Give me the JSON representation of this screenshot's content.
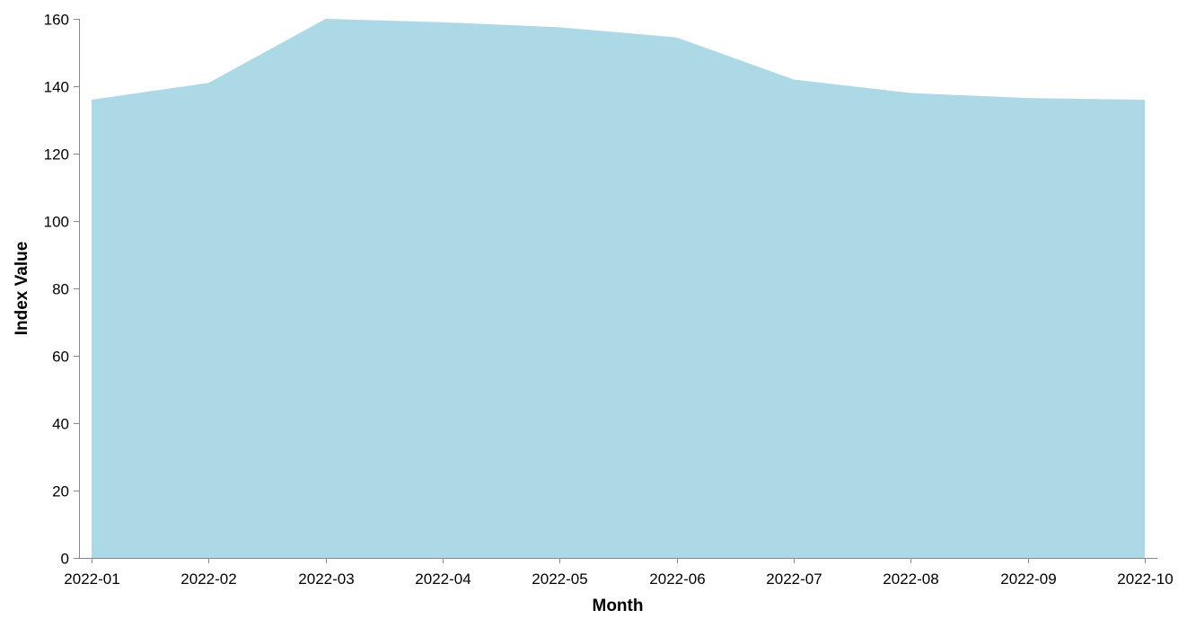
{
  "chart_data": {
    "type": "area",
    "x": [
      "2022-01",
      "2022-02",
      "2022-03",
      "2022-04",
      "2022-05",
      "2022-06",
      "2022-07",
      "2022-08",
      "2022-09",
      "2022-10"
    ],
    "values": [
      136,
      141,
      160,
      159,
      157.5,
      154.5,
      142,
      138,
      136.5,
      136
    ],
    "xlabel": "Month",
    "ylabel": "Index Value",
    "ylim": [
      0,
      160
    ],
    "yticks": [
      0,
      20,
      40,
      60,
      80,
      100,
      120,
      140,
      160
    ],
    "grid": false,
    "colors": {
      "area": "#add8e6",
      "axis": "#888888"
    }
  }
}
